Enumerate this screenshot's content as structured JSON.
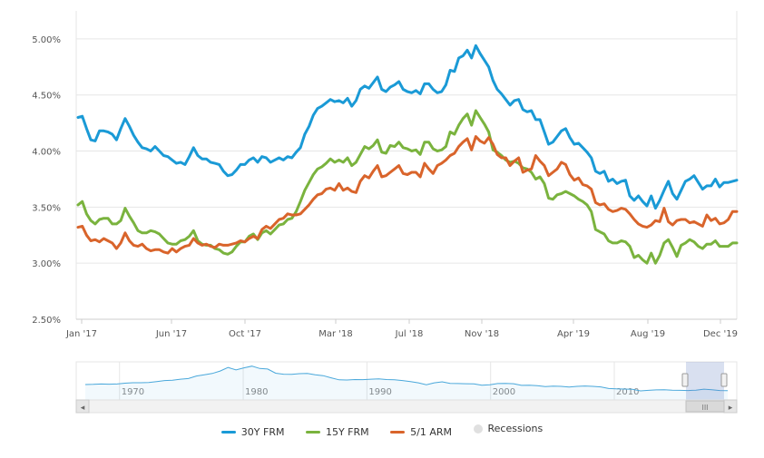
{
  "chart_data": {
    "type": "line",
    "y_ticks": [
      "2.50%",
      "3.00%",
      "3.50%",
      "4.00%",
      "4.50%",
      "5.00%"
    ],
    "ylim": [
      2.5,
      5.25
    ],
    "x_ticks": [
      "Jan '17",
      "Jun '17",
      "Oct '17",
      "Mar '18",
      "Jul '18",
      "Nov '18",
      "Apr '19",
      "Aug '19",
      "Dec '19"
    ],
    "grid": true,
    "legend_position": "bottom",
    "series": [
      {
        "name": "30Y FRM",
        "color": "#1a9ad6",
        "values": [
          4.3,
          4.31,
          4.2,
          4.1,
          4.09,
          4.18,
          4.18,
          4.17,
          4.15,
          4.1,
          4.2,
          4.29,
          4.22,
          4.14,
          4.08,
          4.03,
          4.02,
          4.0,
          4.04,
          4.0,
          3.96,
          3.95,
          3.92,
          3.89,
          3.9,
          3.88,
          3.95,
          4.03,
          3.96,
          3.93,
          3.93,
          3.9,
          3.89,
          3.88,
          3.82,
          3.78,
          3.79,
          3.83,
          3.88,
          3.88,
          3.92,
          3.94,
          3.9,
          3.95,
          3.94,
          3.9,
          3.92,
          3.94,
          3.92,
          3.95,
          3.94,
          3.99,
          4.03,
          4.15,
          4.22,
          4.32,
          4.38,
          4.4,
          4.43,
          4.46,
          4.44,
          4.45,
          4.43,
          4.47,
          4.4,
          4.45,
          4.55,
          4.58,
          4.56,
          4.61,
          4.66,
          4.55,
          4.53,
          4.57,
          4.59,
          4.62,
          4.55,
          4.53,
          4.52,
          4.54,
          4.51,
          4.6,
          4.6,
          4.55,
          4.52,
          4.53,
          4.59,
          4.72,
          4.71,
          4.83,
          4.85,
          4.9,
          4.83,
          4.94,
          4.87,
          4.81,
          4.75,
          4.63,
          4.55,
          4.51,
          4.46,
          4.41,
          4.45,
          4.46,
          4.37,
          4.35,
          4.36,
          4.28,
          4.28,
          4.17,
          4.06,
          4.08,
          4.13,
          4.18,
          4.2,
          4.12,
          4.06,
          4.07,
          4.03,
          3.99,
          3.94,
          3.82,
          3.8,
          3.82,
          3.73,
          3.75,
          3.71,
          3.73,
          3.74,
          3.6,
          3.56,
          3.6,
          3.55,
          3.51,
          3.6,
          3.49,
          3.56,
          3.65,
          3.73,
          3.62,
          3.57,
          3.65,
          3.73,
          3.75,
          3.78,
          3.72,
          3.66,
          3.69,
          3.69,
          3.75,
          3.68,
          3.72,
          3.72,
          3.73,
          3.74
        ]
      },
      {
        "name": "15Y FRM",
        "color": "#7ab33e",
        "values": [
          3.52,
          3.55,
          3.44,
          3.38,
          3.35,
          3.39,
          3.4,
          3.4,
          3.35,
          3.35,
          3.38,
          3.49,
          3.42,
          3.36,
          3.29,
          3.27,
          3.27,
          3.29,
          3.28,
          3.26,
          3.22,
          3.18,
          3.17,
          3.17,
          3.2,
          3.21,
          3.24,
          3.29,
          3.2,
          3.17,
          3.16,
          3.16,
          3.13,
          3.12,
          3.09,
          3.08,
          3.1,
          3.15,
          3.19,
          3.19,
          3.24,
          3.26,
          3.21,
          3.27,
          3.29,
          3.26,
          3.3,
          3.34,
          3.35,
          3.39,
          3.4,
          3.46,
          3.55,
          3.65,
          3.72,
          3.79,
          3.84,
          3.86,
          3.89,
          3.93,
          3.9,
          3.92,
          3.9,
          3.94,
          3.87,
          3.9,
          3.97,
          4.04,
          4.02,
          4.05,
          4.1,
          3.99,
          3.98,
          4.05,
          4.04,
          4.08,
          4.03,
          4.02,
          4.0,
          4.01,
          3.97,
          4.08,
          4.08,
          4.02,
          4.0,
          4.01,
          4.04,
          4.17,
          4.15,
          4.23,
          4.29,
          4.33,
          4.23,
          4.36,
          4.3,
          4.24,
          4.17,
          4.01,
          3.99,
          3.96,
          3.92,
          3.9,
          3.91,
          3.89,
          3.85,
          3.84,
          3.81,
          3.75,
          3.77,
          3.71,
          3.58,
          3.57,
          3.61,
          3.62,
          3.64,
          3.62,
          3.6,
          3.57,
          3.55,
          3.52,
          3.46,
          3.3,
          3.28,
          3.26,
          3.2,
          3.18,
          3.18,
          3.2,
          3.19,
          3.15,
          3.05,
          3.07,
          3.03,
          3.0,
          3.09,
          3.0,
          3.07,
          3.18,
          3.21,
          3.14,
          3.06,
          3.16,
          3.18,
          3.21,
          3.19,
          3.15,
          3.13,
          3.17,
          3.17,
          3.2,
          3.15,
          3.15,
          3.15,
          3.18,
          3.18
        ]
      },
      {
        "name": "5/1 ARM",
        "color": "#d9642b",
        "values": [
          3.32,
          3.33,
          3.25,
          3.2,
          3.21,
          3.19,
          3.22,
          3.2,
          3.18,
          3.13,
          3.18,
          3.27,
          3.2,
          3.16,
          3.15,
          3.17,
          3.13,
          3.11,
          3.12,
          3.12,
          3.1,
          3.09,
          3.13,
          3.1,
          3.13,
          3.15,
          3.16,
          3.22,
          3.18,
          3.16,
          3.17,
          3.15,
          3.14,
          3.17,
          3.16,
          3.16,
          3.17,
          3.18,
          3.2,
          3.19,
          3.22,
          3.24,
          3.22,
          3.3,
          3.33,
          3.31,
          3.35,
          3.39,
          3.4,
          3.44,
          3.43,
          3.43,
          3.44,
          3.48,
          3.52,
          3.57,
          3.61,
          3.62,
          3.66,
          3.67,
          3.65,
          3.71,
          3.65,
          3.67,
          3.64,
          3.63,
          3.73,
          3.78,
          3.76,
          3.82,
          3.87,
          3.77,
          3.78,
          3.81,
          3.84,
          3.87,
          3.8,
          3.79,
          3.81,
          3.81,
          3.77,
          3.89,
          3.84,
          3.8,
          3.87,
          3.89,
          3.92,
          3.96,
          3.98,
          4.04,
          4.08,
          4.11,
          4.01,
          4.13,
          4.09,
          4.07,
          4.12,
          4.06,
          3.97,
          3.94,
          3.94,
          3.87,
          3.91,
          3.94,
          3.81,
          3.83,
          3.84,
          3.96,
          3.91,
          3.87,
          3.78,
          3.81,
          3.84,
          3.9,
          3.88,
          3.79,
          3.74,
          3.76,
          3.7,
          3.69,
          3.66,
          3.54,
          3.52,
          3.53,
          3.48,
          3.46,
          3.47,
          3.49,
          3.48,
          3.44,
          3.39,
          3.35,
          3.33,
          3.32,
          3.34,
          3.38,
          3.37,
          3.49,
          3.37,
          3.34,
          3.38,
          3.39,
          3.39,
          3.36,
          3.37,
          3.35,
          3.33,
          3.43,
          3.38,
          3.4,
          3.35,
          3.36,
          3.39,
          3.46,
          3.46
        ]
      }
    ],
    "navigator": {
      "ticks": [
        "1970",
        "1980",
        "1990",
        "2000",
        "2010"
      ],
      "series": [
        7.4,
        7.5,
        7.7,
        7.6,
        7.7,
        8.2,
        8.5,
        8.5,
        8.6,
        9.2,
        9.8,
        10.0,
        10.6,
        11.0,
        12.5,
        13.2,
        14.0,
        15.5,
        17.6,
        16.2,
        17.4,
        18.4,
        17.0,
        16.7,
        14.2,
        13.6,
        13.5,
        13.9,
        14.0,
        13.2,
        12.7,
        11.4,
        10.2,
        10.1,
        10.4,
        10.3,
        10.6,
        10.8,
        10.4,
        10.2,
        9.8,
        9.2,
        8.4,
        7.3,
        8.4,
        9.0,
        8.1,
        8.0,
        7.9,
        7.8,
        7.0,
        7.3,
        8.0,
        8.1,
        7.9,
        6.9,
        7.0,
        6.7,
        6.2,
        6.4,
        6.3,
        5.9,
        6.3,
        6.5,
        6.3,
        6.0,
        5.0,
        4.8,
        4.7,
        4.5,
        3.6,
        3.9,
        4.2,
        4.3,
        4.0,
        3.9,
        3.8,
        4.0,
        4.6,
        4.3,
        3.8,
        3.7
      ]
    }
  },
  "legend": {
    "items": [
      {
        "label": "30Y FRM",
        "color": "#1a9ad6"
      },
      {
        "label": "15Y FRM",
        "color": "#7ab33e"
      },
      {
        "label": "5/1 ARM",
        "color": "#d9642b"
      }
    ],
    "recessions_label": "Recessions",
    "recessions_color": "#e0e0e0"
  },
  "scrollbar": {
    "left_arrow": "◂",
    "right_arrow": "▸",
    "grip": "III"
  }
}
